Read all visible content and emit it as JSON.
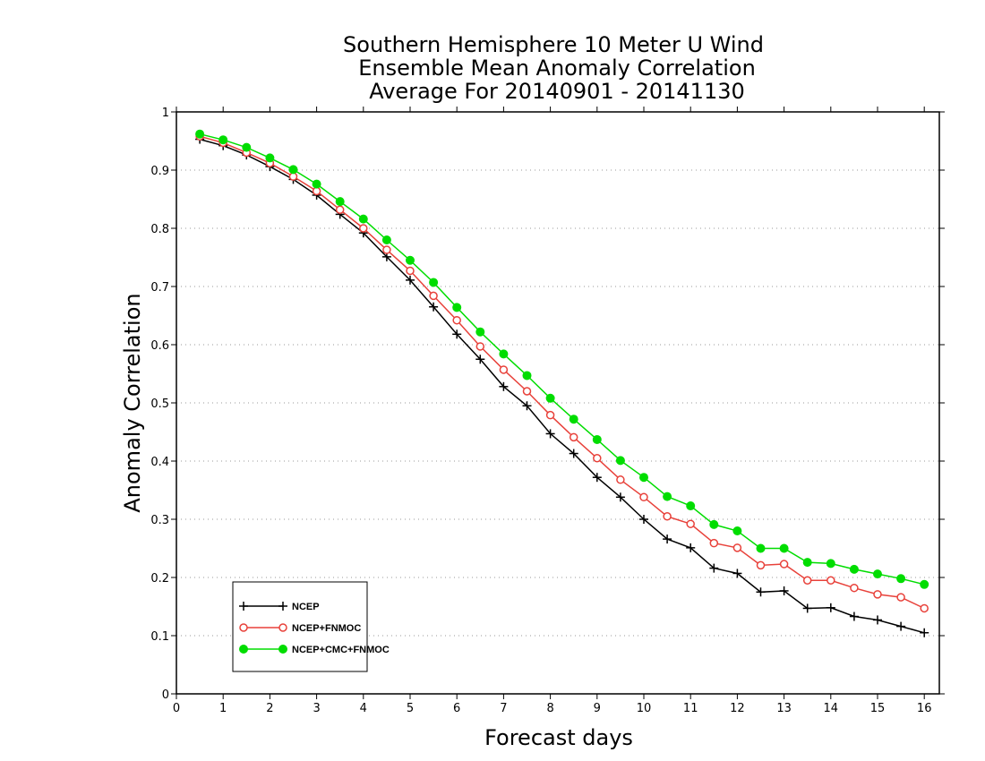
{
  "chart_data": {
    "type": "line",
    "title": [
      "Southern Hemisphere 10 Meter U Wind",
      "Ensemble Mean Anomaly Correlation",
      "Average For 20140901 - 20141130"
    ],
    "xlabel": "Forecast days",
    "ylabel": "Anomaly Correlation",
    "xlim": [
      0,
      16.25
    ],
    "ylim": [
      0,
      1
    ],
    "xticks": [
      "0",
      "1",
      "2",
      "3",
      "4",
      "5",
      "6",
      "7",
      "8",
      "9",
      "10",
      "11",
      "12",
      "13",
      "14",
      "15",
      "16"
    ],
    "yticks": [
      "0",
      "0.1",
      "0.2",
      "0.3",
      "0.4",
      "0.5",
      "0.6",
      "0.7",
      "0.8",
      "0.9",
      "1"
    ],
    "grid": "horizontal dotted",
    "legend_position": "bottom-left",
    "x": [
      0.5,
      1,
      1.5,
      2,
      2.5,
      3,
      3.5,
      4,
      4.5,
      5,
      5.5,
      6,
      6.5,
      7,
      7.5,
      8,
      8.5,
      9,
      9.5,
      10,
      10.5,
      11,
      11.5,
      12,
      12.5,
      13,
      13.5,
      14,
      14.5,
      15,
      15.5,
      16
    ],
    "series": [
      {
        "name": "NCEP",
        "color": "#000000",
        "marker": "plus",
        "values": [
          0.953,
          0.942,
          0.926,
          0.906,
          0.884,
          0.857,
          0.824,
          0.792,
          0.751,
          0.711,
          0.665,
          0.618,
          0.575,
          0.528,
          0.495,
          0.447,
          0.413,
          0.372,
          0.338,
          0.3,
          0.266,
          0.251,
          0.216,
          0.207,
          0.175,
          0.177,
          0.147,
          0.148,
          0.133,
          0.127,
          0.116,
          0.105
        ]
      },
      {
        "name": "NCEP+FNMOC",
        "color": "#e8413a",
        "marker": "open-circle",
        "values": [
          0.958,
          0.947,
          0.93,
          0.912,
          0.889,
          0.864,
          0.832,
          0.8,
          0.763,
          0.727,
          0.684,
          0.642,
          0.597,
          0.557,
          0.52,
          0.479,
          0.441,
          0.405,
          0.368,
          0.338,
          0.305,
          0.292,
          0.259,
          0.251,
          0.221,
          0.223,
          0.195,
          0.195,
          0.182,
          0.171,
          0.166,
          0.147
        ]
      },
      {
        "name": "NCEP+CMC+FNMOC",
        "color": "#00dd00",
        "marker": "filled-circle",
        "values": [
          0.962,
          0.952,
          0.939,
          0.921,
          0.901,
          0.876,
          0.846,
          0.816,
          0.78,
          0.745,
          0.707,
          0.664,
          0.622,
          0.584,
          0.547,
          0.508,
          0.472,
          0.437,
          0.401,
          0.372,
          0.339,
          0.323,
          0.291,
          0.28,
          0.25,
          0.25,
          0.226,
          0.224,
          0.214,
          0.206,
          0.198,
          0.188
        ]
      }
    ]
  }
}
